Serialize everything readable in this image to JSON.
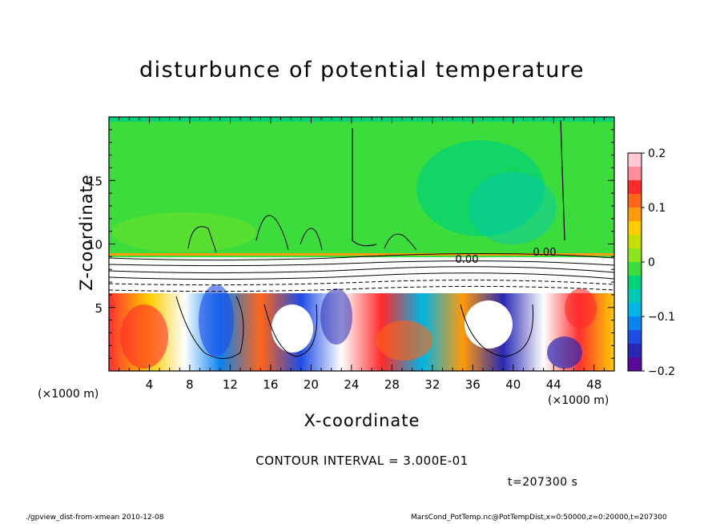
{
  "title": "disturbunce of potential temperature",
  "chart_data": {
    "type": "heatmap",
    "title": "disturbunce of potential temperature",
    "xlabel": "X-coordinate",
    "ylabel": "Z-coordinate",
    "x_unit_label": "(×1000 m)",
    "xlim": [
      0,
      50
    ],
    "ylim": [
      0,
      20
    ],
    "x_ticks": [
      "4",
      "8",
      "12",
      "16",
      "20",
      "24",
      "28",
      "32",
      "36",
      "40",
      "44",
      "48"
    ],
    "y_ticks": [
      "5",
      "10",
      "15"
    ],
    "colorbar": {
      "range": [
        -0.2,
        0.2
      ],
      "tick_labels": [
        "0.2",
        "0.1",
        "0",
        "−0.1",
        "−0.2"
      ],
      "colors": [
        "#ffc8d2",
        "#ff8c96",
        "#ff2a2a",
        "#ff6418",
        "#ff9a0a",
        "#ffcc00",
        "#c8dc00",
        "#8ce61e",
        "#3cdc3c",
        "#00d278",
        "#00c8b4",
        "#00b4e6",
        "#0a82f0",
        "#1e4be6",
        "#2828b4",
        "#5a0a9b"
      ]
    },
    "contour_labels": [
      "0.00",
      "0.00"
    ],
    "contour_interval_text": "CONTOUR INTERVAL = 3.000E-01",
    "time_text": "t=207300 s"
  },
  "footer": {
    "left": "./gpview_dist-from-xmean  2010-12-08",
    "right": "MarsCond_PotTemp.nc@PotTempDist,x=0:50000,z=0:20000,t=207300"
  }
}
